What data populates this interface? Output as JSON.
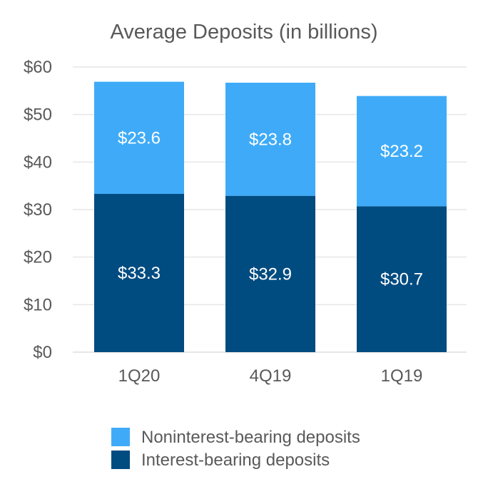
{
  "chart_data": {
    "type": "bar",
    "stacked": true,
    "title": "Average Deposits (in billions)",
    "xlabel": "",
    "ylabel": "",
    "categories": [
      "1Q20",
      "4Q19",
      "1Q19"
    ],
    "series": [
      {
        "name": "Interest-bearing deposits",
        "color": "#004b80",
        "values": [
          33.3,
          32.9,
          30.7
        ],
        "labels": [
          "$33.3",
          "$32.9",
          "$30.7"
        ]
      },
      {
        "name": "Noninterest-bearing deposits",
        "color": "#3fabf8",
        "values": [
          23.6,
          23.8,
          23.2
        ],
        "labels": [
          "$23.6",
          "$23.8",
          "$23.2"
        ]
      }
    ],
    "ylim": [
      0,
      60
    ],
    "yticks": [
      0,
      10,
      20,
      30,
      40,
      50,
      60
    ],
    "ytick_labels": [
      "$0",
      "$10",
      "$20",
      "$30",
      "$40",
      "$50",
      "$60"
    ],
    "grid": true,
    "gridline_color": "#e6e6e6",
    "legend_position": "bottom",
    "legend": [
      {
        "name": "Noninterest-bearing deposits",
        "color": "#3fabf8"
      },
      {
        "name": "Interest-bearing deposits",
        "color": "#004b80"
      }
    ]
  }
}
